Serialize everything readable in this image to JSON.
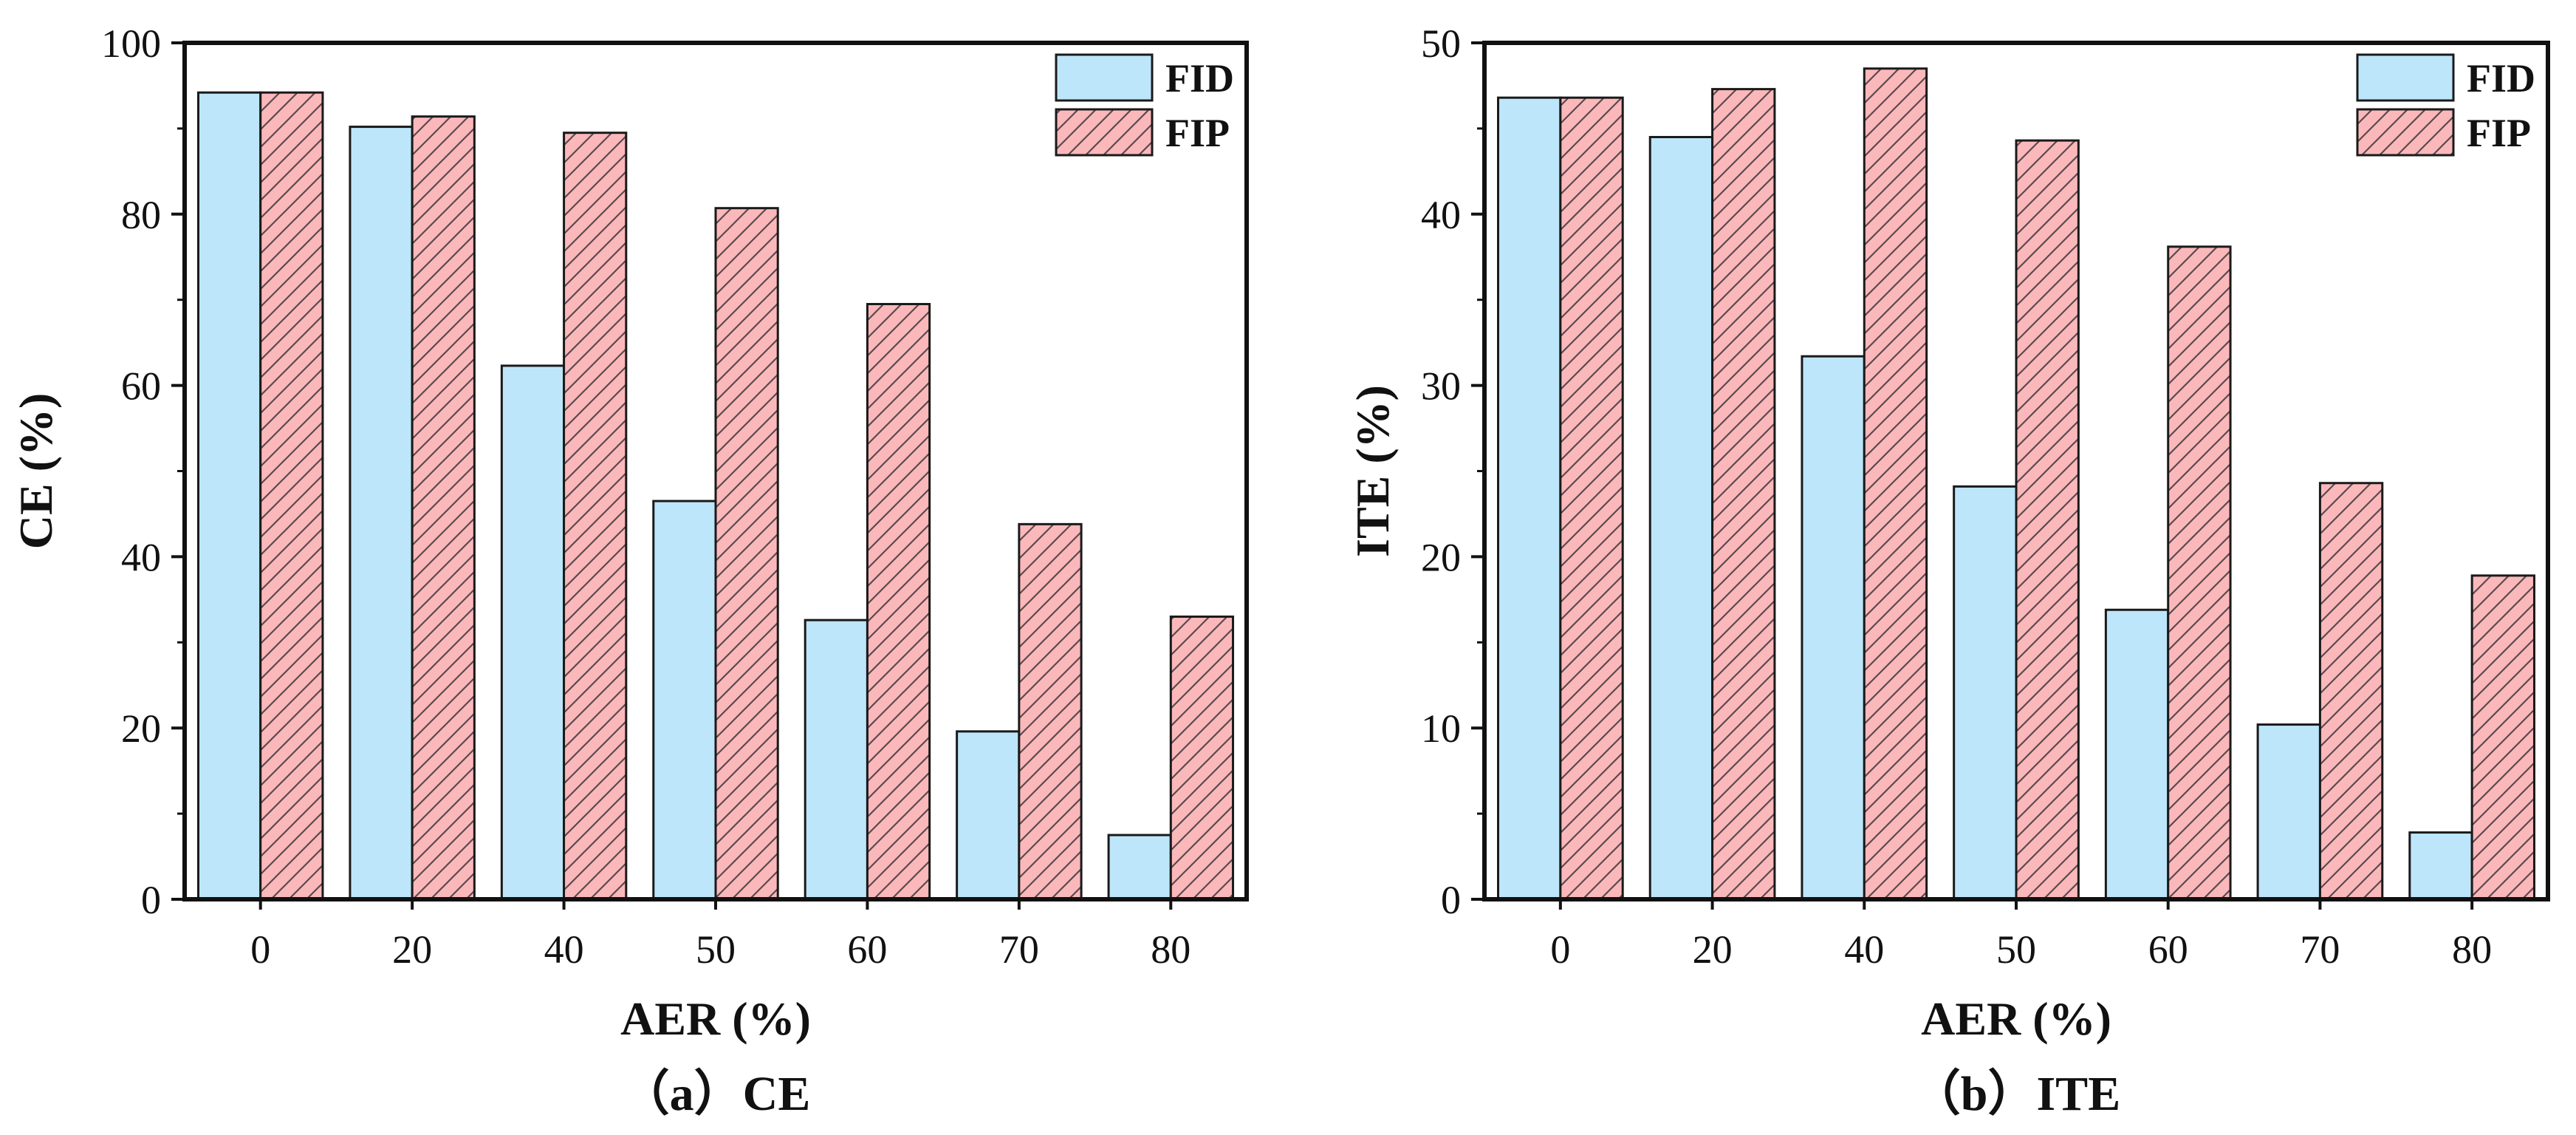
{
  "chart_data": [
    {
      "type": "bar",
      "categories": [
        "0",
        "20",
        "40",
        "50",
        "60",
        "70",
        "80"
      ],
      "series": [
        {
          "name": "FID",
          "values": [
            94.2,
            90.2,
            62.3,
            46.5,
            32.6,
            19.6,
            7.5
          ],
          "color": "#bde6fb"
        },
        {
          "name": "FIP",
          "values": [
            94.2,
            91.4,
            89.5,
            80.7,
            69.5,
            43.8,
            33.0
          ],
          "color": "#fbb8bb"
        }
      ],
      "xlabel": "AER (%)",
      "ylabel": "CE (%)",
      "ylim": [
        0,
        100
      ],
      "yticks": [
        0,
        20,
        40,
        60,
        80,
        100
      ],
      "caption": "（a）CE",
      "legend": "top-right",
      "grid": false
    },
    {
      "type": "bar",
      "categories": [
        "0",
        "20",
        "40",
        "50",
        "60",
        "70",
        "80"
      ],
      "series": [
        {
          "name": "FID",
          "values": [
            46.8,
            44.5,
            31.7,
            24.1,
            16.9,
            10.2,
            3.9
          ],
          "color": "#bde6fb"
        },
        {
          "name": "FIP",
          "values": [
            46.8,
            47.3,
            48.5,
            44.3,
            38.1,
            24.3,
            18.9
          ],
          "color": "#fbb8bb"
        }
      ],
      "xlabel": "AER (%)",
      "ylabel": "ITE (%)",
      "ylim": [
        0,
        50
      ],
      "yticks": [
        0,
        10,
        20,
        30,
        40,
        50
      ],
      "caption": "（b）ITE",
      "legend": "top-right",
      "grid": false
    }
  ]
}
